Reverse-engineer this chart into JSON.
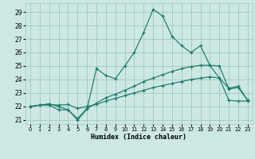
{
  "xlabel": "Humidex (Indice chaleur)",
  "bg_color": "#cde8e2",
  "grid_color": "#9fc8bf",
  "line_color": "#1a7a6e",
  "xlim": [
    -0.5,
    23.5
  ],
  "ylim": [
    20.7,
    29.65
  ],
  "yticks": [
    21,
    22,
    23,
    24,
    25,
    26,
    27,
    28,
    29
  ],
  "xticks": [
    0,
    1,
    2,
    3,
    4,
    5,
    6,
    7,
    8,
    9,
    10,
    11,
    12,
    13,
    14,
    15,
    16,
    17,
    18,
    19,
    20,
    21,
    22,
    23
  ],
  "s1_x": [
    0,
    1,
    2,
    3,
    4,
    5,
    6,
    7,
    8,
    9,
    10,
    11,
    12,
    13,
    14,
    15,
    16,
    17,
    18,
    19,
    20,
    21,
    22,
    23
  ],
  "s1_y": [
    22.0,
    22.1,
    22.15,
    22.1,
    22.15,
    21.85,
    22.0,
    22.15,
    22.4,
    22.6,
    22.8,
    23.0,
    23.2,
    23.4,
    23.55,
    23.7,
    23.85,
    24.0,
    24.1,
    24.2,
    24.1,
    22.45,
    22.4,
    22.4
  ],
  "s2_x": [
    0,
    1,
    2,
    3,
    4,
    5,
    6,
    7,
    8,
    9,
    10,
    11,
    12,
    13,
    14,
    15,
    16,
    17,
    18,
    19,
    20,
    21,
    22,
    23
  ],
  "s2_y": [
    22.0,
    22.1,
    22.2,
    22.0,
    21.75,
    21.1,
    21.85,
    22.25,
    22.65,
    22.9,
    23.2,
    23.5,
    23.85,
    24.1,
    24.35,
    24.6,
    24.8,
    24.95,
    25.05,
    25.05,
    25.0,
    23.3,
    23.4,
    22.45
  ],
  "s3_x": [
    0,
    1,
    2,
    3,
    4,
    5,
    6,
    7,
    8,
    9,
    10,
    11,
    12,
    13,
    14,
    15,
    16,
    17,
    18,
    19,
    20,
    21,
    22,
    23
  ],
  "s3_y": [
    22.0,
    22.1,
    22.1,
    21.75,
    21.75,
    21.0,
    21.8,
    24.8,
    24.3,
    24.05,
    25.0,
    26.0,
    27.5,
    29.2,
    28.7,
    27.2,
    26.5,
    26.0,
    26.5,
    25.05,
    24.1,
    23.35,
    23.5,
    22.45
  ]
}
